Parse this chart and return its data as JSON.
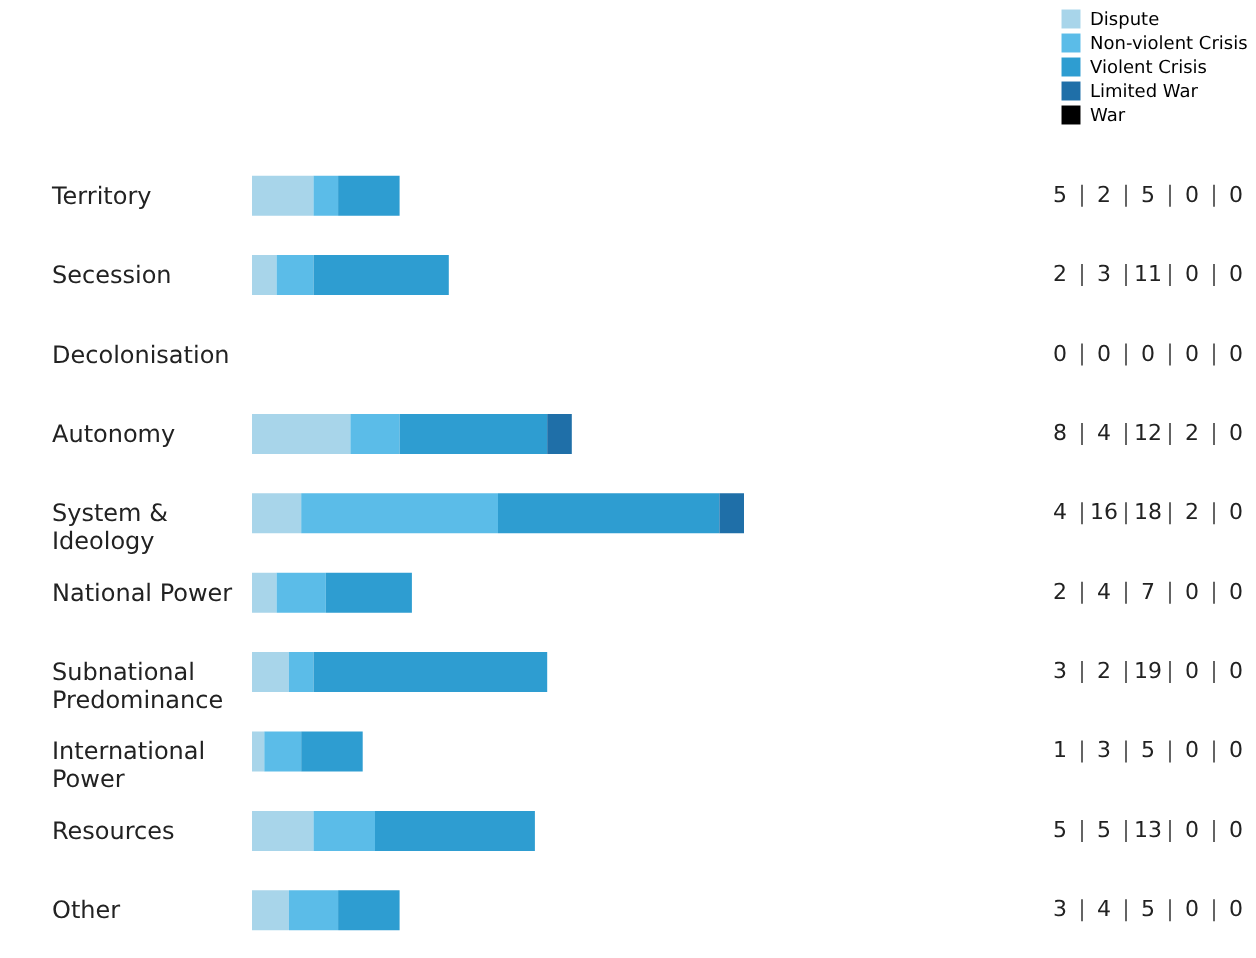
{
  "chart_data": {
    "type": "bar",
    "orientation": "horizontal",
    "stacked": true,
    "data_labels": true,
    "legend": "top right",
    "categories": [
      "Territory",
      "Secession",
      "Decolonisation",
      "Autonomy",
      "System & Ideology",
      "National Power",
      "Subnational Predominance",
      "International Power",
      "Resources",
      "Other"
    ],
    "series": [
      {
        "name": "Dispute",
        "color": "#a8d5ea",
        "values": [
          5,
          2,
          0,
          8,
          4,
          2,
          3,
          1,
          5,
          3
        ]
      },
      {
        "name": "Non-violent Crisis",
        "color": "#5bbce8",
        "values": [
          2,
          3,
          0,
          4,
          16,
          4,
          2,
          3,
          5,
          4
        ]
      },
      {
        "name": "Violent Crisis",
        "color": "#2e9dd1",
        "values": [
          5,
          11,
          0,
          12,
          18,
          7,
          19,
          5,
          13,
          5
        ]
      },
      {
        "name": "Limited War",
        "color": "#1f6fa8",
        "values": [
          0,
          0,
          0,
          2,
          2,
          0,
          0,
          0,
          0,
          0
        ]
      },
      {
        "name": "War",
        "color": "#000000",
        "values": [
          0,
          0,
          0,
          0,
          0,
          0,
          0,
          0,
          0,
          0
        ]
      }
    ]
  }
}
